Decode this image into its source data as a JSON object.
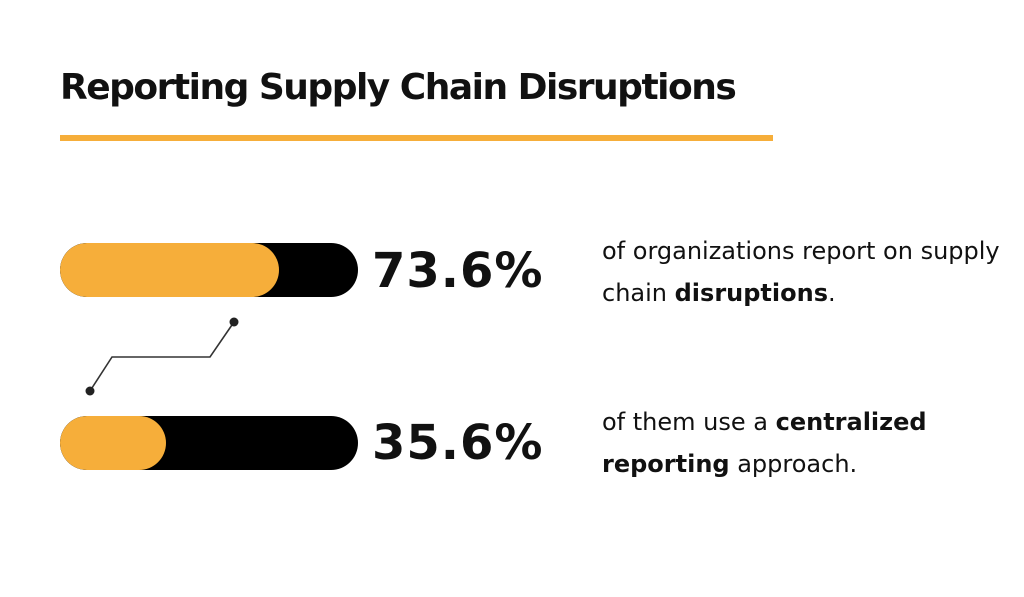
{
  "title": "Reporting Supply Chain Disruptions",
  "colors": {
    "accent": "#F6AE3A",
    "track": "#000000",
    "text": "#111111",
    "background": "#FFFFFF"
  },
  "chart_data": {
    "type": "bar",
    "title": "Reporting Supply Chain Disruptions",
    "unit": "%",
    "ylim": [
      0,
      100
    ],
    "values": [
      73.6,
      35.6
    ],
    "value_labels": [
      "73.6%",
      "35.6%"
    ],
    "descriptions": [
      {
        "before": "of organizations report on supply chain ",
        "bold": "disruptions",
        "after": "."
      },
      {
        "before": "of them use a ",
        "bold": "centralized reporting",
        "after": " approach."
      }
    ]
  }
}
